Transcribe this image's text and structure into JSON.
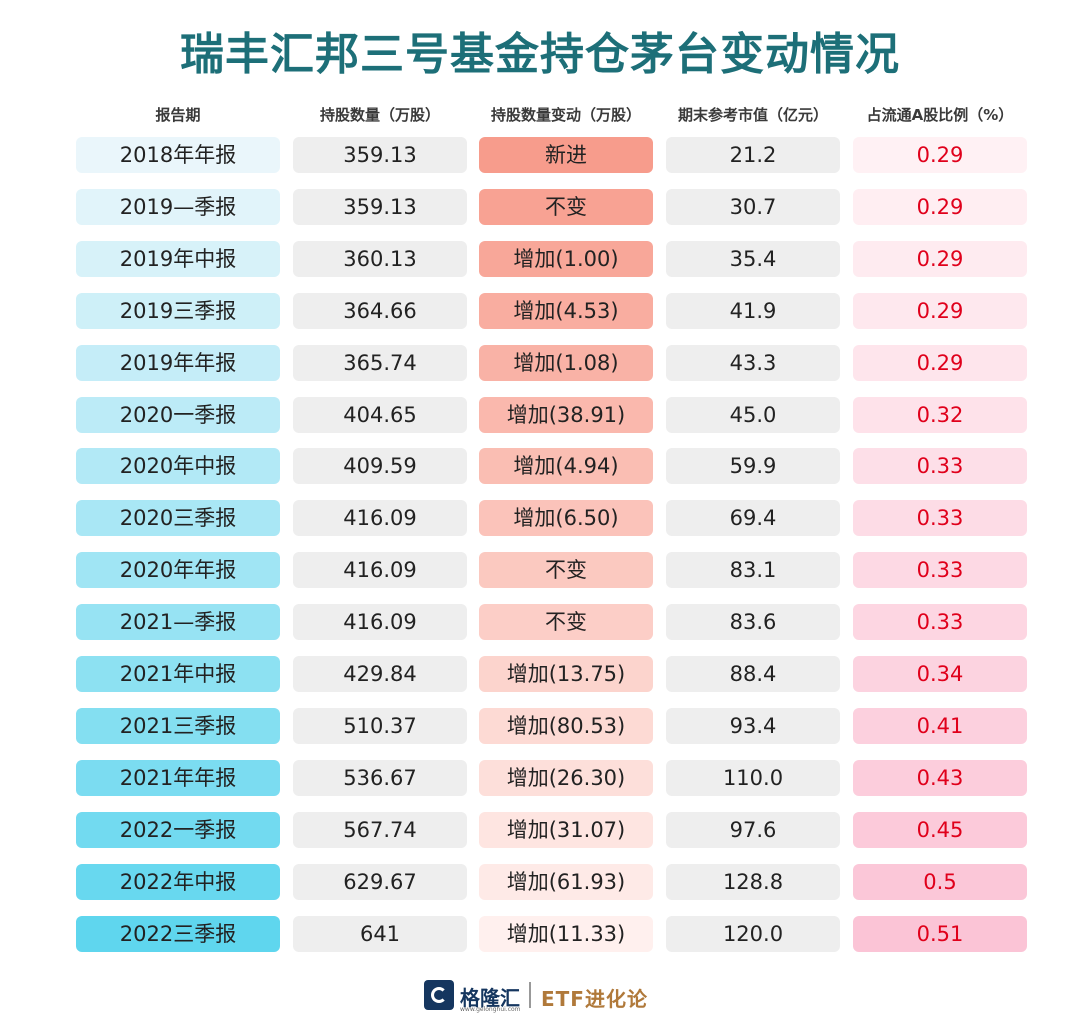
{
  "title": "瑞丰汇邦三号基金持仓茅台变动情况",
  "columns": [
    "报告期",
    "持股数量（万股）",
    "持股数量变动（万股）",
    "期末参考市值（亿元）",
    "占流通A股比例（%）"
  ],
  "chart_data": {
    "type": "table",
    "title": "瑞丰汇邦三号基金持仓茅台变动情况",
    "columns": [
      "报告期",
      "持股数量（万股）",
      "持股数量变动（万股）",
      "期末参考市值（亿元）",
      "占流通A股比例（%）"
    ],
    "rows": [
      {
        "period": "2018年年报",
        "shares": "359.13",
        "change": "新进",
        "value": "21.2",
        "ratio": "0.29"
      },
      {
        "period": "2019—季报",
        "shares": "359.13",
        "change": "不变",
        "value": "30.7",
        "ratio": "0.29"
      },
      {
        "period": "2019年中报",
        "shares": "360.13",
        "change": "增加(1.00)",
        "value": "35.4",
        "ratio": "0.29"
      },
      {
        "period": "2019三季报",
        "shares": "364.66",
        "change": "增加(4.53)",
        "value": "41.9",
        "ratio": "0.29"
      },
      {
        "period": "2019年年报",
        "shares": "365.74",
        "change": "增加(1.08)",
        "value": "43.3",
        "ratio": "0.29"
      },
      {
        "period": "2020一季报",
        "shares": "404.65",
        "change": "增加(38.91)",
        "value": "45.0",
        "ratio": "0.32"
      },
      {
        "period": "2020年中报",
        "shares": "409.59",
        "change": "增加(4.94)",
        "value": "59.9",
        "ratio": "0.33"
      },
      {
        "period": "2020三季报",
        "shares": "416.09",
        "change": "增加(6.50)",
        "value": "69.4",
        "ratio": "0.33"
      },
      {
        "period": "2020年年报",
        "shares": "416.09",
        "change": "不变",
        "value": "83.1",
        "ratio": "0.33"
      },
      {
        "period": "2021—季报",
        "shares": "416.09",
        "change": "不变",
        "value": "83.6",
        "ratio": "0.33"
      },
      {
        "period": "2021年中报",
        "shares": "429.84",
        "change": "增加(13.75)",
        "value": "88.4",
        "ratio": "0.34"
      },
      {
        "period": "2021三季报",
        "shares": "510.37",
        "change": "增加(80.53)",
        "value": "93.4",
        "ratio": "0.41"
      },
      {
        "period": "2021年年报",
        "shares": "536.67",
        "change": "增加(26.30)",
        "value": "110.0",
        "ratio": "0.43"
      },
      {
        "period": "2022一季报",
        "shares": "567.74",
        "change": "增加(31.07)",
        "value": "97.6",
        "ratio": "0.45"
      },
      {
        "period": "2022年中报",
        "shares": "629.67",
        "change": "增加(61.93)",
        "value": "128.8",
        "ratio": "0.5"
      },
      {
        "period": "2022三季报",
        "shares": "641",
        "change": "增加(11.33)",
        "value": "120.0",
        "ratio": "0.51"
      }
    ]
  },
  "colors": {
    "title": "#1d6f78",
    "period_start": "#eaf6fb",
    "period_end": "#5fd6ee",
    "change_start": "#f79c8c",
    "change_end": "#fff0ee",
    "ratio_start": "#fff1f4",
    "ratio_end": "#fbc4d6",
    "ratio_text": "#e0001b"
  },
  "footer": {
    "brand": "格隆汇",
    "brand_sub": "www.gelonghui.com",
    "account": "ETF进化论"
  }
}
